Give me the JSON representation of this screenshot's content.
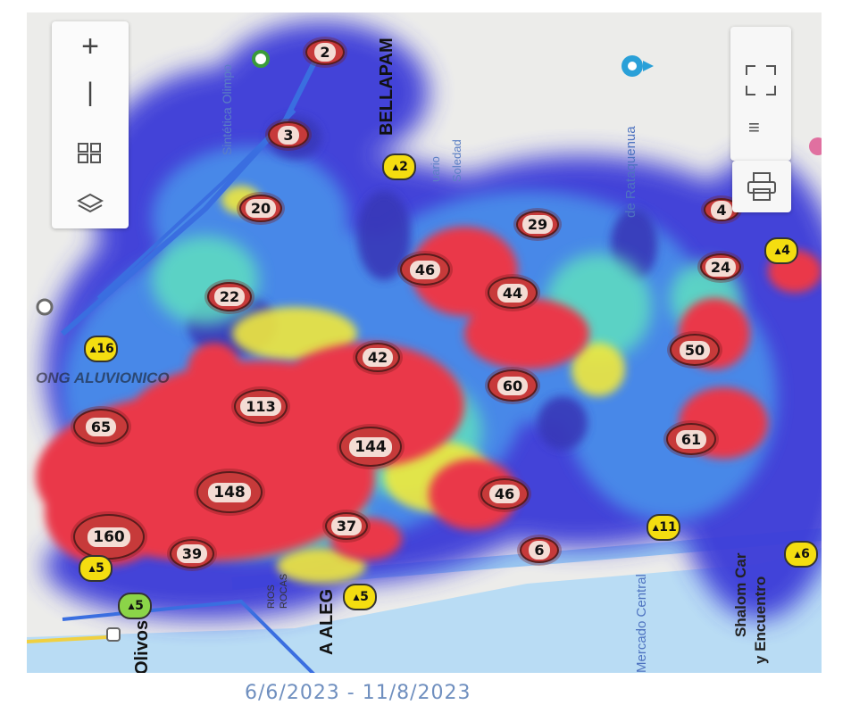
{
  "date_range": "6/6/2023 - 11/8/2023",
  "map_labels": [
    {
      "text": "BELLAPAM",
      "size": 20,
      "color": "#111111",
      "bold": true
    },
    {
      "text": "Sintética Olimpo",
      "size": 14,
      "color": "#5b7fc4",
      "bold": false
    },
    {
      "text": "de Rataquenua",
      "size": 15,
      "color": "#4e73c0",
      "bold": false
    },
    {
      "text": "Olivos",
      "size": 20,
      "color": "#111111",
      "bold": true
    },
    {
      "text": "A ALEG",
      "size": 20,
      "color": "#111111",
      "bold": true
    },
    {
      "text": "Mercado Central",
      "size": 15,
      "color": "#4e73c0",
      "bold": false
    },
    {
      "text": "Shalom Car",
      "size": 17,
      "color": "#222222",
      "bold": true
    },
    {
      "text": "y Encuentro",
      "size": 17,
      "color": "#222222",
      "bold": true
    },
    {
      "text": "uario",
      "size": 13,
      "color": "#5b7fc4",
      "bold": false
    },
    {
      "text": "Soledad",
      "size": 13,
      "color": "#5b7fc4",
      "bold": false
    },
    {
      "text": "RIOS",
      "size": 11,
      "color": "#333333",
      "bold": false
    },
    {
      "text": "ROCAS",
      "size": 11,
      "color": "#333333",
      "bold": false
    },
    {
      "text": "ONG ALUVIONICO",
      "size": 17,
      "color": "#111111",
      "bold": true
    }
  ],
  "clusters": [
    {
      "label": "2"
    },
    {
      "label": "3"
    },
    {
      "label": "20"
    },
    {
      "label": "22"
    },
    {
      "label": "46"
    },
    {
      "label": "29"
    },
    {
      "label": "44"
    },
    {
      "label": "42"
    },
    {
      "label": "113"
    },
    {
      "label": "65"
    },
    {
      "label": "144"
    },
    {
      "label": "60"
    },
    {
      "label": "148"
    },
    {
      "label": "46"
    },
    {
      "label": "160"
    },
    {
      "label": "39"
    },
    {
      "label": "37"
    },
    {
      "label": "6"
    },
    {
      "label": "4"
    },
    {
      "label": "24"
    },
    {
      "label": "50"
    },
    {
      "label": "61"
    }
  ],
  "markers": [
    {
      "label": "2",
      "color": "yellow"
    },
    {
      "label": "16",
      "color": "yellow"
    },
    {
      "label": "5",
      "color": "yellow"
    },
    {
      "label": "5",
      "color": "green"
    },
    {
      "label": "5",
      "color": "yellow"
    },
    {
      "label": "11",
      "color": "yellow"
    },
    {
      "label": "4",
      "color": "yellow"
    },
    {
      "label": "6",
      "color": "yellow"
    }
  ],
  "controls": {
    "zoom_in": "zoom-in-icon",
    "zoom_out": "zoom-out-icon",
    "grid": "grid-icon",
    "layers": "layers-icon",
    "fullscreen": "fullscreen-icon",
    "print": "print-icon"
  },
  "colors": {
    "heat_hot": "#ea3848",
    "heat_warm": "#f0e83c",
    "heat_mid": "#5fe0c0",
    "heat_cool": "#4a78e8",
    "heat_cold": "#3a3ad8",
    "road": "#3a6ee0",
    "water": "#8cc6f4"
  }
}
